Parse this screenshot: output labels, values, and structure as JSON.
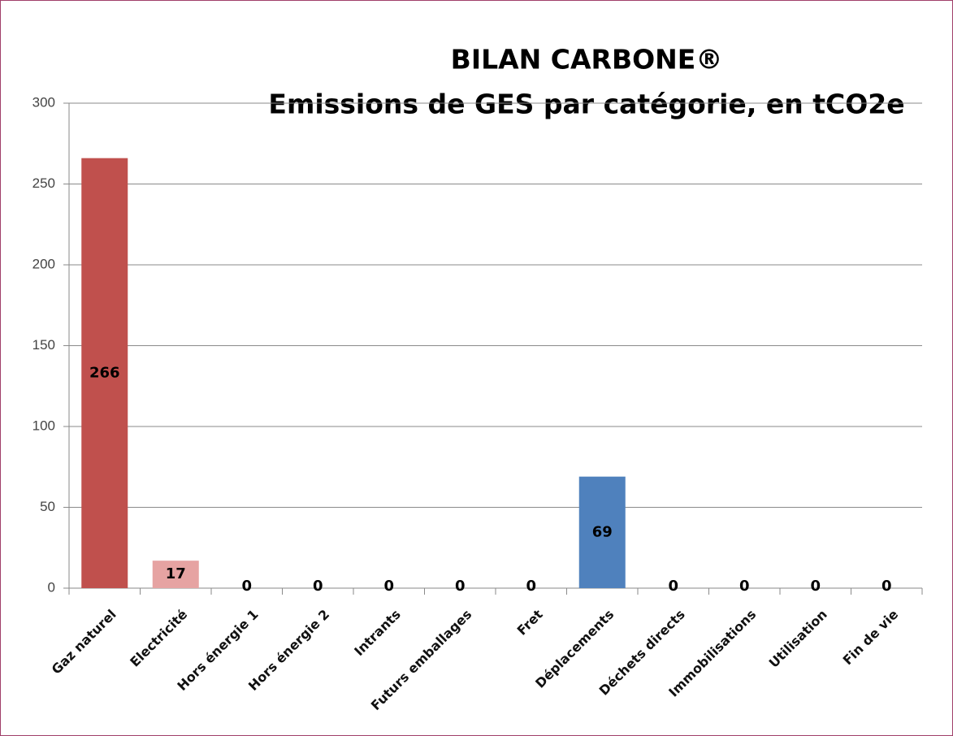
{
  "chart_data": {
    "type": "bar",
    "title": "BILAN CARBONE®",
    "subtitle": "Emissions de GES par catégorie, en tCO2e",
    "categories": [
      "Gaz naturel",
      "Electricité",
      "Hors énergie 1",
      "Hors énergie 2",
      "Intrants",
      "Futurs emballages",
      "Fret",
      "Déplacements",
      "Déchets directs",
      "Immobilisations",
      "Utilisation",
      "Fin de vie"
    ],
    "values": [
      266,
      17,
      0,
      0,
      0,
      0,
      0,
      69,
      0,
      0,
      0,
      0
    ],
    "colors": [
      "#c0504d",
      "#e6a3a2",
      "#c0504d",
      "#c0504d",
      "#c0504d",
      "#c0504d",
      "#c0504d",
      "#4f81bd",
      "#4f81bd",
      "#4f81bd",
      "#4f81bd",
      "#4f81bd"
    ],
    "ylim": [
      0,
      300
    ],
    "yticks": [
      0,
      50,
      100,
      150,
      200,
      250,
      300
    ],
    "grid": true
  }
}
